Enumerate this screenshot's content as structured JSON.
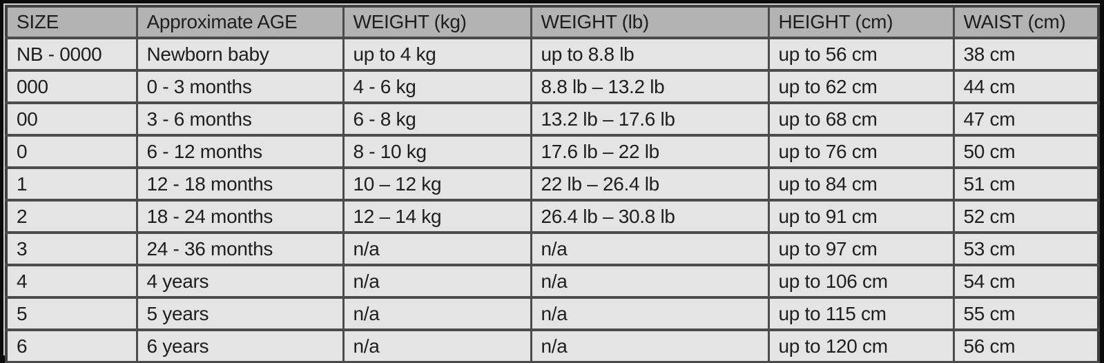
{
  "colors": {
    "frame": "#0b0b0b",
    "mat": "#d6d6d6",
    "header_bg": "#b3b3b3",
    "cell_bg": "#e4e4e4",
    "grid": "#4b4b4b",
    "text": "#1e1e1e"
  },
  "chart_data": {
    "type": "table",
    "columns": [
      "SIZE",
      "Approximate AGE",
      "WEIGHT (kg)",
      "WEIGHT (lb)",
      "HEIGHT (cm)",
      "WAIST (cm)"
    ],
    "rows": [
      [
        "NB - 0000",
        "Newborn baby",
        "up to 4 kg",
        "up to 8.8 lb",
        "up to 56 cm",
        "38 cm"
      ],
      [
        "000",
        "0 - 3 months",
        "4 - 6 kg",
        "8.8 lb – 13.2 lb",
        "up to 62 cm",
        "44 cm"
      ],
      [
        "00",
        "3 - 6 months",
        "6 - 8 kg",
        "13.2 lb – 17.6 lb",
        "up to 68 cm",
        "47 cm"
      ],
      [
        "0",
        "6 - 12 months",
        "8 - 10 kg",
        "17.6 lb – 22 lb",
        "up to 76 cm",
        "50 cm"
      ],
      [
        "1",
        "12 - 18 months",
        "10 – 12 kg",
        "22 lb – 26.4 lb",
        "up to 84 cm",
        "51 cm"
      ],
      [
        "2",
        "18 - 24 months",
        "12 – 14 kg",
        "26.4 lb – 30.8 lb",
        "up to 91 cm",
        "52 cm"
      ],
      [
        "3",
        "24 - 36 months",
        "n/a",
        "n/a",
        "up to 97 cm",
        "53 cm"
      ],
      [
        "4",
        "4 years",
        "n/a",
        "n/a",
        "up to 106 cm",
        "54 cm"
      ],
      [
        "5",
        "5 years",
        "n/a",
        "n/a",
        "up to 115 cm",
        "55 cm"
      ],
      [
        "6",
        "6 years",
        "n/a",
        "n/a",
        "up to 120 cm",
        "56 cm"
      ]
    ]
  }
}
